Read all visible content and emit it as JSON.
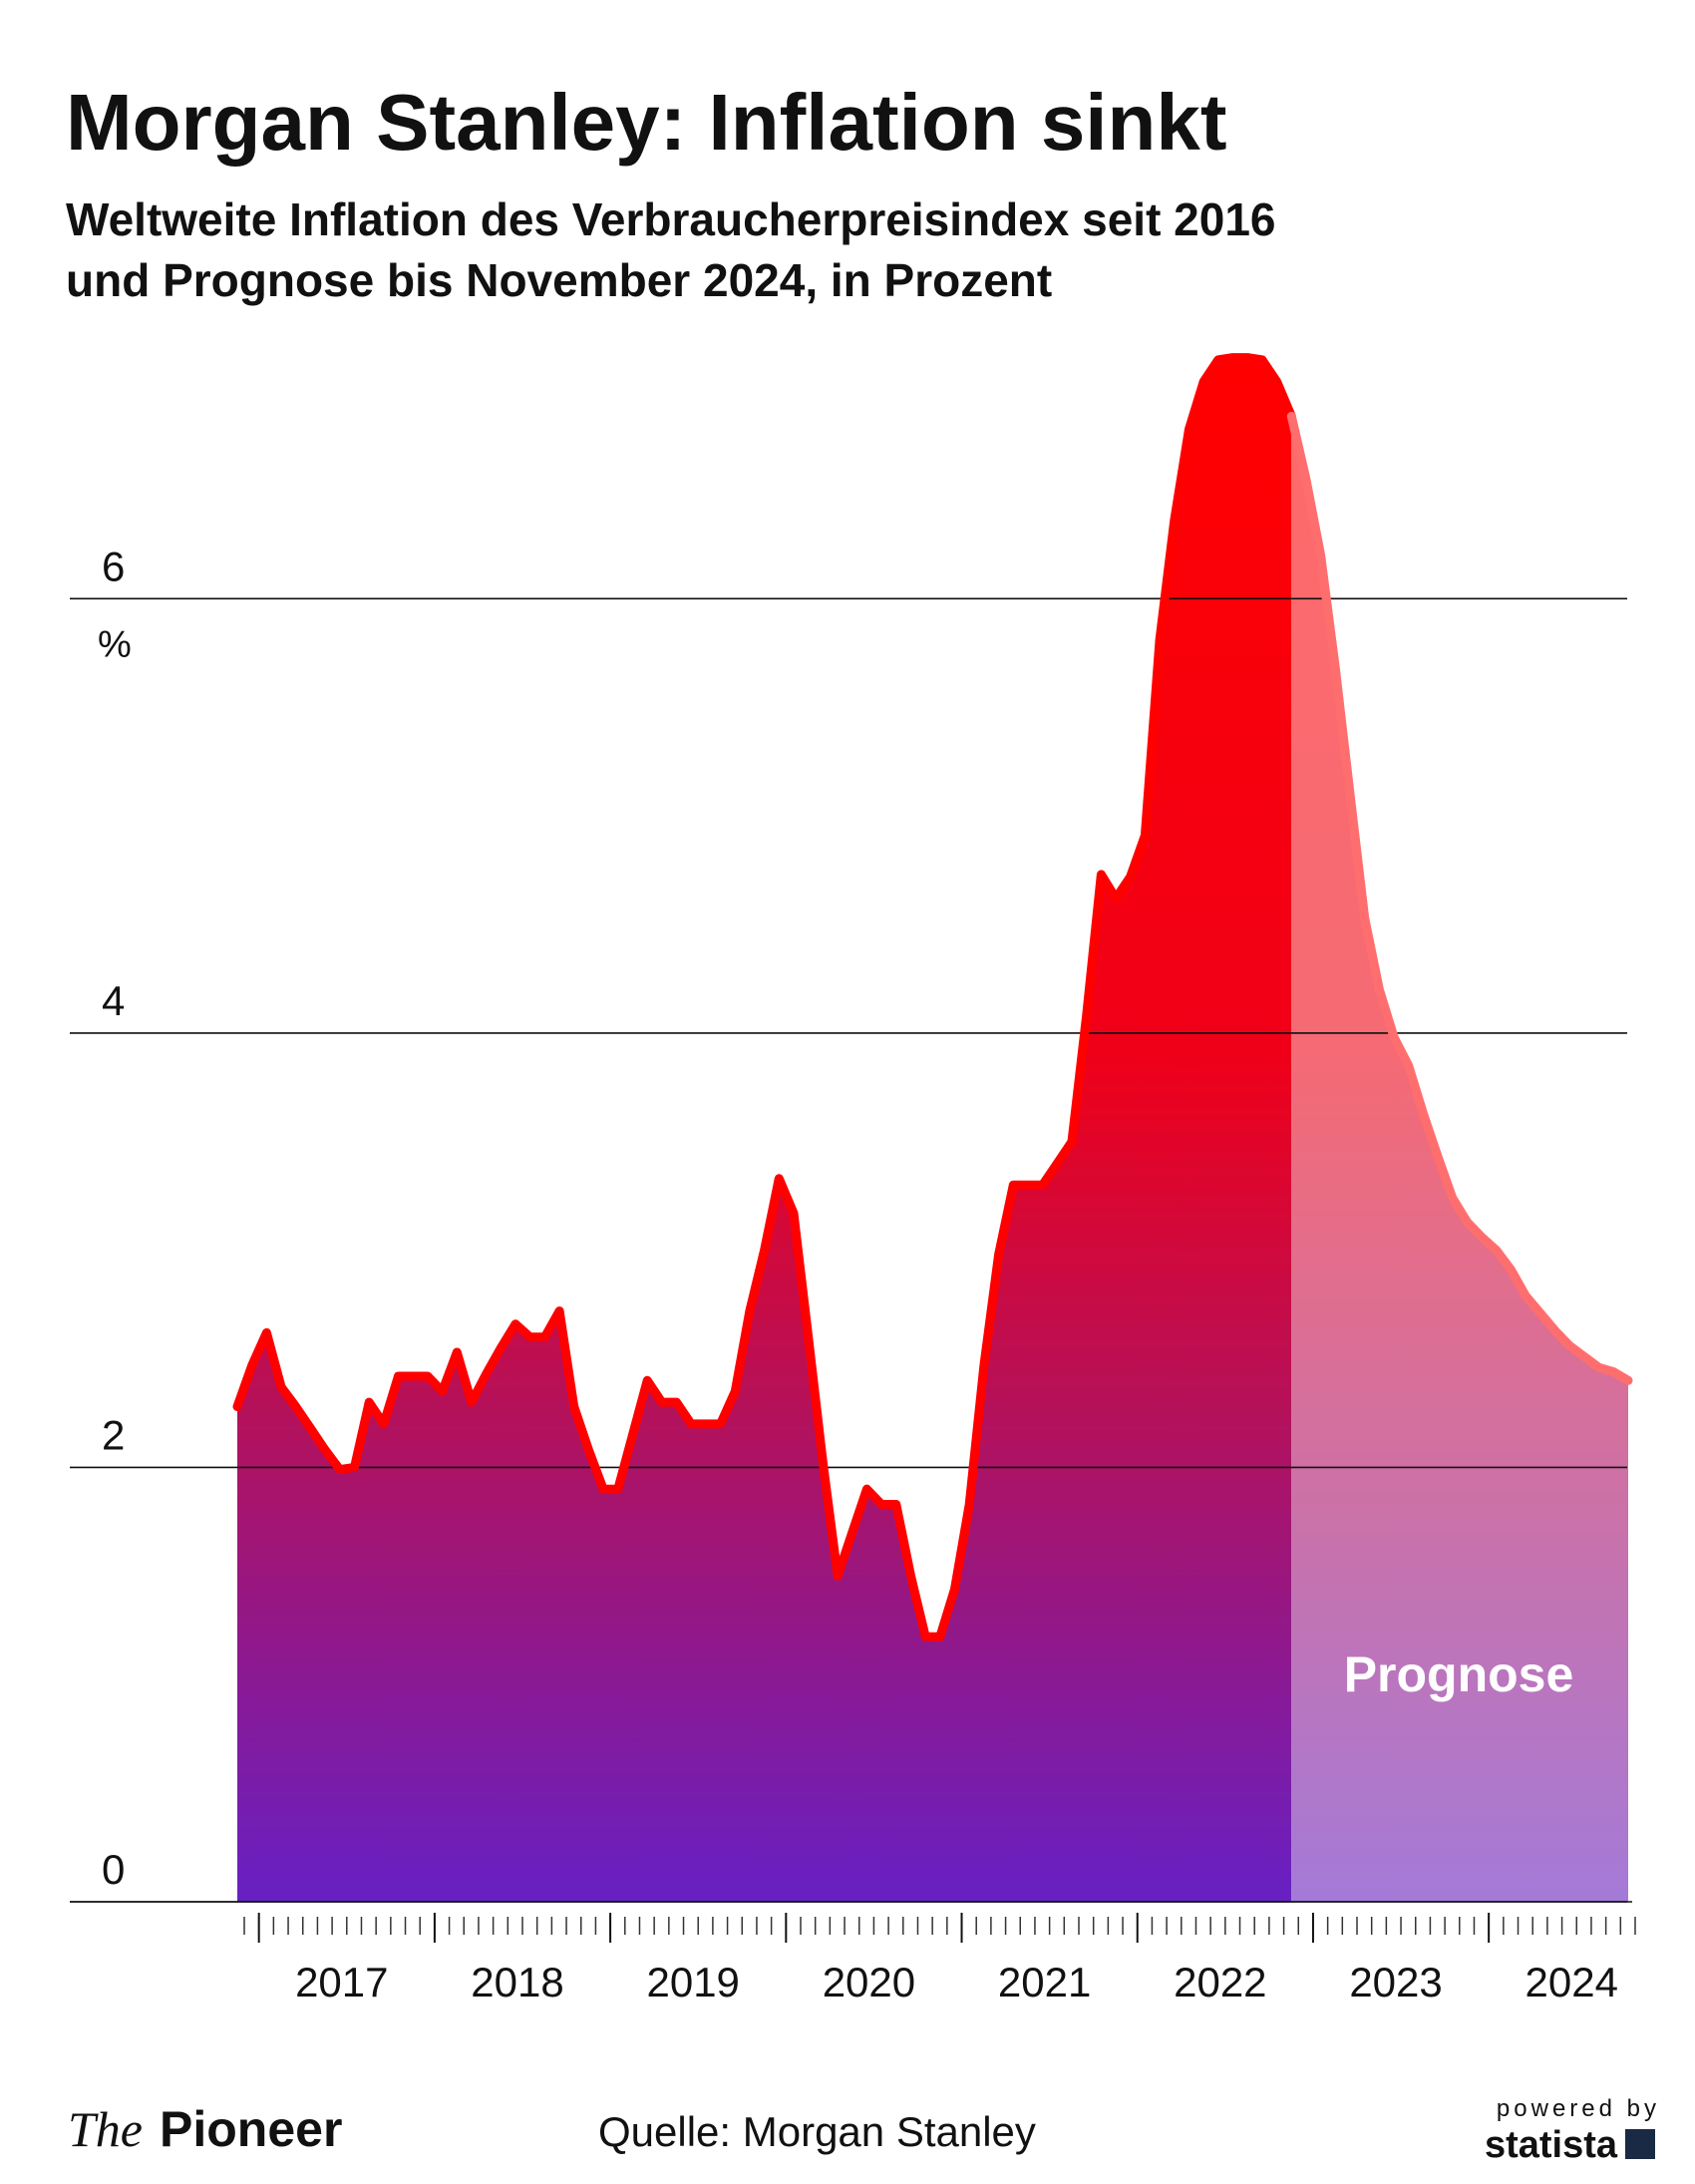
{
  "chart_data": {
    "type": "area",
    "title": "Morgan Stanley: Inflation sinkt",
    "subtitle": [
      "Weltweite Inflation des Verbraucherpreisindex seit 2016",
      "und Prognose bis November 2024, in Prozent"
    ],
    "y_unit": "%",
    "categories": [
      null,
      null,
      null,
      null,
      null,
      null,
      null,
      "2017",
      null,
      null,
      null,
      null,
      null,
      null,
      null,
      null,
      null,
      null,
      null,
      "2018",
      null,
      null,
      null,
      null,
      null,
      null,
      null,
      null,
      null,
      null,
      null,
      "2019",
      null,
      null,
      null,
      null,
      null,
      null,
      null,
      null,
      null,
      null,
      null,
      "2020",
      null,
      null,
      null,
      null,
      null,
      null,
      null,
      null,
      null,
      null,
      null,
      "2021",
      null,
      null,
      null,
      null,
      null,
      null,
      null,
      null,
      null,
      null,
      null,
      "2022",
      null,
      null,
      null,
      null,
      null,
      null,
      null,
      null,
      null,
      null,
      null,
      "2023",
      null,
      null,
      null,
      null,
      null,
      null,
      null,
      null,
      null,
      null,
      null,
      "2024",
      null,
      null,
      null,
      null
    ],
    "values": [
      2.28,
      2.47,
      2.62,
      2.37,
      2.28,
      2.18,
      2.08,
      1.99,
      2.0,
      2.3,
      2.2,
      2.42,
      2.42,
      2.42,
      2.35,
      2.53,
      2.3,
      2.43,
      2.55,
      2.66,
      2.6,
      2.6,
      2.72,
      2.28,
      2.08,
      1.9,
      1.9,
      2.15,
      2.4,
      2.3,
      2.3,
      2.2,
      2.2,
      2.2,
      2.35,
      2.72,
      3.0,
      3.33,
      3.17,
      2.6,
      2.02,
      1.5,
      1.7,
      1.9,
      1.83,
      1.83,
      1.5,
      1.22,
      1.22,
      1.44,
      1.83,
      2.47,
      2.98,
      3.3,
      3.3,
      3.3,
      3.4,
      3.5,
      4.08,
      4.73,
      4.62,
      4.72,
      4.91,
      5.81,
      6.36,
      6.78,
      7.0,
      7.1,
      7.11,
      7.11,
      7.1,
      7.0,
      6.84,
      6.55,
      6.2,
      5.68,
      5.1,
      4.53,
      4.2,
      3.98,
      3.85,
      3.63,
      3.43,
      3.24,
      3.13,
      3.06,
      3.0,
      2.91,
      2.79,
      2.71,
      2.63,
      2.56,
      2.51,
      2.46,
      2.44,
      2.4
    ],
    "color": "#ff0000",
    "forecast": {
      "label": "Prognose",
      "from_index": 72,
      "color": "#ff6e6e"
    },
    "ylim": [
      0,
      7.2
    ],
    "yticks": [
      0,
      2,
      4,
      6
    ],
    "grid": true
  },
  "footer": {
    "logo": [
      "The",
      "Pioneer"
    ],
    "source": "Quelle: Morgan Stanley",
    "powered": [
      "powered by",
      "statista"
    ]
  }
}
